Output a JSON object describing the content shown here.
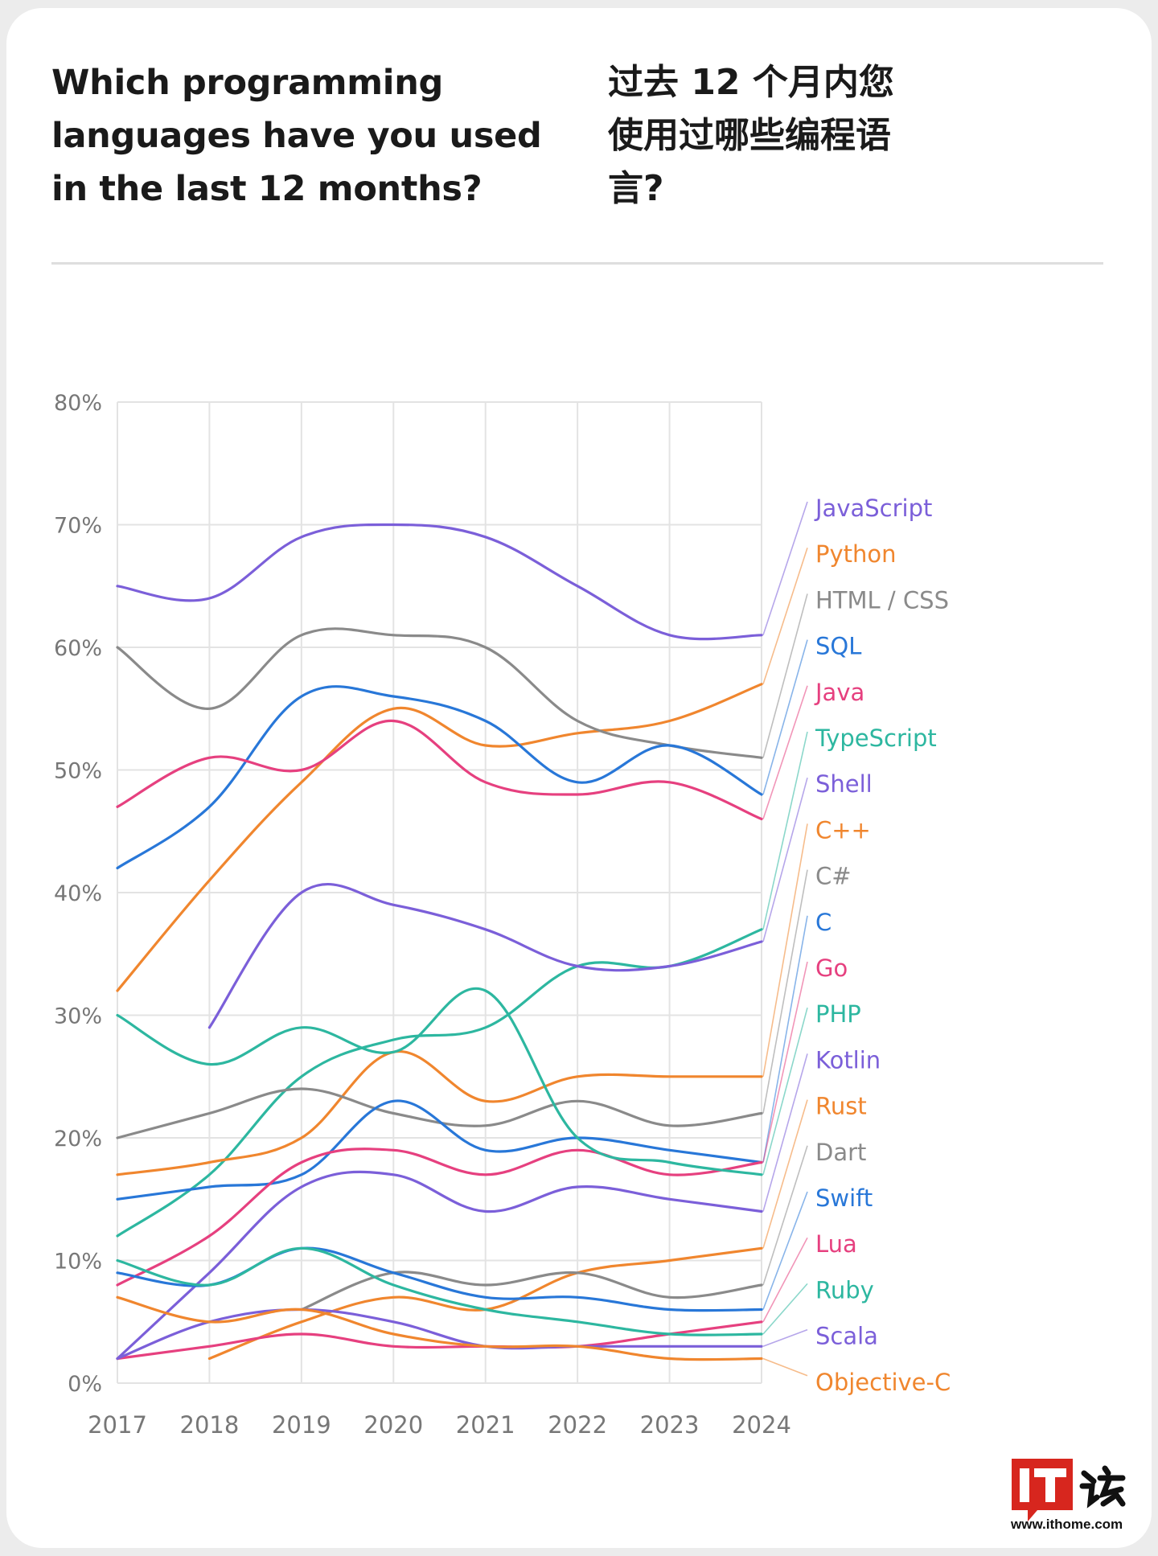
{
  "title_en": "Which programming languages have you used in the last 12 months?",
  "title_zh": "过去 12 个月内您使用过哪些编程语言?",
  "watermark": {
    "text": "www.ithome.com",
    "logo": "IT之家"
  },
  "chart_data": {
    "type": "line",
    "title": "",
    "xlabel": "",
    "ylabel": "",
    "x": [
      2017,
      2018,
      2019,
      2020,
      2021,
      2022,
      2023,
      2024
    ],
    "ylim": [
      0,
      80
    ],
    "ytick_labels": [
      "0%",
      "10%",
      "20%",
      "30%",
      "40%",
      "50%",
      "60%",
      "70%",
      "80%"
    ],
    "grid": true,
    "legend": "right, labels ordered by 2024 value",
    "series": [
      {
        "name": "JavaScript",
        "color": "#7b5fd9",
        "values": [
          65,
          64,
          69,
          70,
          69,
          65,
          61,
          61
        ]
      },
      {
        "name": "Python",
        "color": "#f0862e",
        "values": [
          32,
          41,
          49,
          55,
          52,
          53,
          54,
          57
        ]
      },
      {
        "name": "HTML / CSS",
        "color": "#8a8a8a",
        "values": [
          60,
          55,
          61,
          61,
          60,
          54,
          52,
          51
        ]
      },
      {
        "name": "SQL",
        "color": "#2877d8",
        "values": [
          42,
          47,
          56,
          56,
          54,
          49,
          52,
          48
        ]
      },
      {
        "name": "Java",
        "color": "#e6407f",
        "values": [
          47,
          51,
          50,
          54,
          49,
          48,
          49,
          46
        ]
      },
      {
        "name": "TypeScript",
        "color": "#2db7a0",
        "values": [
          12,
          17,
          25,
          28,
          29,
          34,
          34,
          37
        ]
      },
      {
        "name": "Shell",
        "color": "#7b5fd9",
        "values": [
          null,
          29,
          40,
          39,
          37,
          34,
          34,
          36
        ]
      },
      {
        "name": "C++",
        "color": "#f0862e",
        "values": [
          17,
          18,
          20,
          27,
          23,
          25,
          25,
          25
        ]
      },
      {
        "name": "C#",
        "color": "#8a8a8a",
        "values": [
          20,
          22,
          24,
          22,
          21,
          23,
          21,
          22
        ]
      },
      {
        "name": "C",
        "color": "#2877d8",
        "values": [
          15,
          16,
          17,
          23,
          19,
          20,
          19,
          18
        ]
      },
      {
        "name": "Go",
        "color": "#e6407f",
        "values": [
          8,
          12,
          18,
          19,
          17,
          19,
          17,
          18
        ]
      },
      {
        "name": "PHP",
        "color": "#2db7a0",
        "values": [
          30,
          26,
          29,
          27,
          32,
          20,
          18,
          17
        ]
      },
      {
        "name": "Kotlin",
        "color": "#7b5fd9",
        "values": [
          2,
          9,
          16,
          17,
          14,
          16,
          15,
          14
        ]
      },
      {
        "name": "Rust",
        "color": "#f0862e",
        "values": [
          null,
          2,
          5,
          7,
          6,
          9,
          10,
          11
        ]
      },
      {
        "name": "Dart",
        "color": "#8a8a8a",
        "values": [
          null,
          null,
          6,
          9,
          8,
          9,
          7,
          8
        ]
      },
      {
        "name": "Swift",
        "color": "#2877d8",
        "values": [
          9,
          8,
          11,
          9,
          7,
          7,
          6,
          6
        ]
      },
      {
        "name": "Lua",
        "color": "#e6407f",
        "values": [
          2,
          3,
          4,
          3,
          3,
          3,
          4,
          5
        ]
      },
      {
        "name": "Ruby",
        "color": "#2db7a0",
        "values": [
          10,
          8,
          11,
          8,
          6,
          5,
          4,
          4
        ]
      },
      {
        "name": "Scala",
        "color": "#7b5fd9",
        "values": [
          2,
          5,
          6,
          5,
          3,
          3,
          3,
          3
        ]
      },
      {
        "name": "Objective-C",
        "color": "#f0862e",
        "values": [
          7,
          5,
          6,
          4,
          3,
          3,
          2,
          2
        ]
      }
    ]
  }
}
